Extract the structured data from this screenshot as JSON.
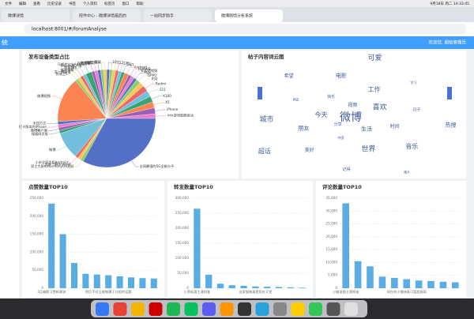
{
  "menu_bar": {
    "items": [
      "文件",
      "编辑",
      "查看",
      "历史记录",
      "书签",
      "个人资料",
      "标签页",
      "窗口",
      "帮助"
    ],
    "clock": "9月18日 周二 14:33:45"
  },
  "tabs": [
    "微博详情",
    "控件中心 - 微博详情最后的",
    "一站同步助手",
    "微博舆情分析系统"
  ],
  "address": "localhost:8001/#/forumAnalyse",
  "header": {
    "brand": "统",
    "user": "欢迎您, 超级管理员"
  },
  "chart_data": [
    {
      "type": "pie",
      "title": "发布设备类型占比",
      "categories": [
        "10",
        "11",
        "12",
        "12S",
        "5G",
        "6T",
        "Android",
        "HUAWEI",
        "K40游戏版",
        "Max",
        "OPPO",
        "P50",
        "Redmi",
        "S11",
        "X100",
        "X5",
        "iPhone",
        "mix游戏智能驱动",
        "全网最强的5G全能分子",
        "双主大屏的HarmonyOS双屏",
        "大屏一颗Android",
        "小米全屏手机Android",
        "微博",
        "搜狐网页版",
        "微博客户端",
        "打卡版本的iPhone",
        "未知方式",
        "微博视频",
        "质感卫1",
        "五一博超值",
        "微博弹幕",
        "华为P40",
        "iPhone客户端",
        "马斯克宝宝Android",
        "百度推荐",
        "微博超话",
        "鸿蒙HD",
        "荣耀"
      ],
      "values": [
        1,
        1,
        1,
        1,
        1,
        1,
        1.5,
        1,
        1,
        1,
        1.5,
        1.5,
        2,
        2,
        2,
        2,
        2,
        1.5,
        33,
        1,
        1,
        1,
        9,
        1,
        1,
        1,
        1,
        15,
        1,
        1,
        1,
        1,
        2,
        1,
        1,
        1,
        1,
        1
      ],
      "colors": [
        "#5470c6",
        "#91cc75",
        "#fac858",
        "#ee6666",
        "#73c0de",
        "#3ba272",
        "#fc8452",
        "#9a60b4",
        "#ea7ccc",
        "#5470c6",
        "#91cc75",
        "#fac858",
        "#ee6666",
        "#73c0de",
        "#3ba272",
        "#fc8452",
        "#9a60b4",
        "#ea7ccc",
        "#5470c6",
        "#91cc75",
        "#fac858",
        "#ee6666",
        "#73c0de",
        "#3ba272",
        "#9a60b4",
        "#ea7ccc",
        "#5470c6",
        "#fc8452",
        "#91cc75",
        "#fac858",
        "#ee6666",
        "#73c0de",
        "#3ba272",
        "#9a60b4",
        "#ea7ccc",
        "#5470c6",
        "#91cc75",
        "#fac858"
      ]
    },
    {
      "type": "wordcloud",
      "title": "帖子内容词云图",
      "words": [
        "微博",
        "分享",
        "视频",
        "生活",
        "今天",
        "喜欢",
        "中国",
        "快乐",
        "时间",
        "朋友",
        "工作",
        "世界",
        "网友",
        "日子",
        "美好",
        "电影",
        "音乐",
        "城市",
        "学习",
        "记得",
        "希望",
        "热搜",
        "超话",
        "可爱",
        "图片"
      ],
      "color": "#3f5a9a"
    },
    {
      "type": "bar",
      "title": "点赞数量TOP10",
      "color": "#5aade3",
      "categories": [
        "3月幽默习惯新潮流",
        null,
        null,
        null,
        null,
        "然后不好立能够属于分组的话题",
        null,
        null,
        null,
        null
      ],
      "values": [
        235000,
        150000,
        70000,
        40000,
        38000,
        36000,
        33000,
        30000,
        28000,
        27000
      ],
      "ylim": [
        0,
        250000
      ],
      "yticks": [
        0,
        {
          "value": 50000,
          "label": "50,000"
        },
        {
          "value": 100000,
          "label": "100,000"
        },
        {
          "value": 150000,
          "label": "150,000"
        },
        {
          "value": 200000,
          "label": "200,000"
        },
        {
          "value": 250000,
          "label": "250,000"
        }
      ],
      "grid": true
    },
    {
      "type": "bar",
      "title": "转发数量TOP10",
      "color": "#5aade3",
      "categories": [
        "小黑板菌主通知鉴",
        null,
        null,
        null,
        null,
        "这家猫咖真是彩虹天堂",
        null,
        null,
        null,
        null
      ],
      "values": [
        265000,
        45000,
        15000,
        10000,
        8000,
        6000,
        5000,
        4000,
        3000,
        2000
      ],
      "ylim": [
        0,
        300000
      ],
      "yticks": [
        0,
        {
          "value": 50000,
          "label": "50,000"
        },
        {
          "value": 100000,
          "label": "100,000"
        },
        {
          "value": 150000,
          "label": "150,000"
        },
        {
          "value": 200000,
          "label": "200,000"
        },
        {
          "value": 250000,
          "label": "250,000"
        },
        {
          "value": 300000,
          "label": "300,000"
        }
      ],
      "grid": true
    },
    {
      "type": "bar",
      "title": "评论数量TOP10",
      "color": "#5aade3",
      "categories": [
        "小猫说猫主通知鉴",
        null,
        null,
        null,
        null,
        "现在的小猫咖真可爱超级萌",
        null,
        null,
        null,
        null
      ],
      "values": [
        33000,
        10500,
        8500,
        4500,
        4000,
        3500,
        3000,
        2800,
        2500,
        2300
      ],
      "ylim": [
        0,
        35000
      ],
      "yticks": [
        0,
        {
          "value": 5000,
          "label": "5,000"
        },
        {
          "value": 10000,
          "label": "10,000"
        },
        {
          "value": 15000,
          "label": "15,000"
        },
        {
          "value": 20000,
          "label": "20,000"
        },
        {
          "value": 25000,
          "label": "25,000"
        },
        {
          "value": 30000,
          "label": "30,000"
        },
        {
          "value": 35000,
          "label": "35,000"
        }
      ],
      "grid": true
    }
  ]
}
